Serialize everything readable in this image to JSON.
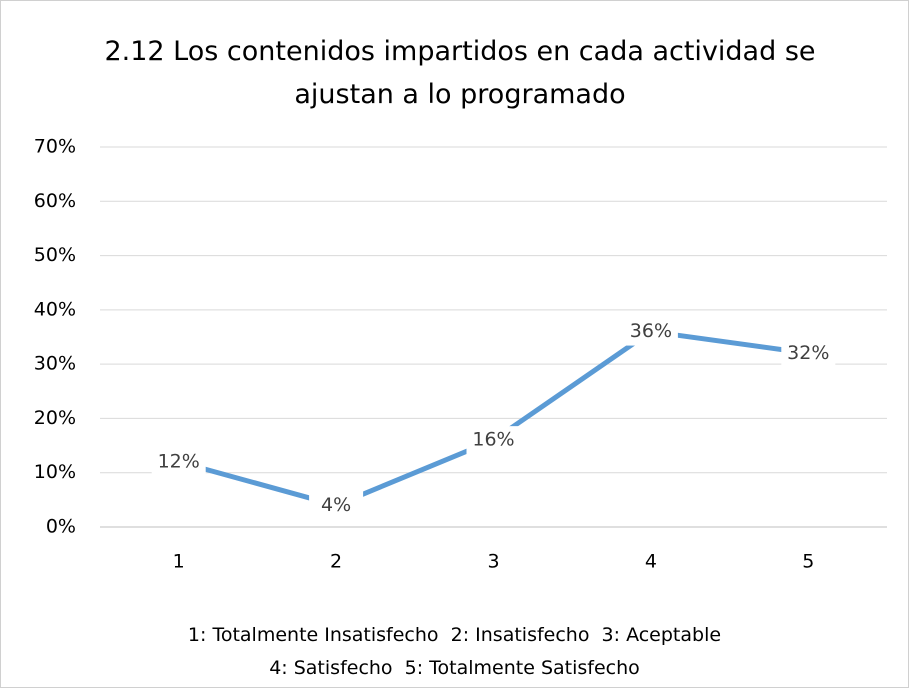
{
  "chart_data": {
    "type": "line",
    "title": "2.12 Los contenidos impartidos en cada actividad se ajustan a lo programado",
    "categories": [
      "1",
      "2",
      "3",
      "4",
      "5"
    ],
    "series": [
      {
        "name": "2.12",
        "color": "#5b9bd5",
        "values": [
          12,
          4,
          16,
          36,
          32
        ],
        "value_labels": [
          "12%",
          "4%",
          "16%",
          "36%",
          "32%"
        ]
      }
    ],
    "ylim": [
      0,
      70
    ],
    "yticks": [
      {
        "value": 0,
        "label": "0%"
      },
      {
        "value": 10,
        "label": "10%"
      },
      {
        "value": 20,
        "label": "20%"
      },
      {
        "value": 30,
        "label": "30%"
      },
      {
        "value": 40,
        "label": "40%"
      },
      {
        "value": 50,
        "label": "50%"
      },
      {
        "value": 60,
        "label": "60%"
      },
      {
        "value": 70,
        "label": "70%"
      }
    ],
    "grid": true,
    "notes": [
      "1: Totalmente Insatisfecho  2: Insatisfecho  3: Aceptable",
      "4: Satisfecho  5: Totalmente Satisfecho"
    ]
  }
}
